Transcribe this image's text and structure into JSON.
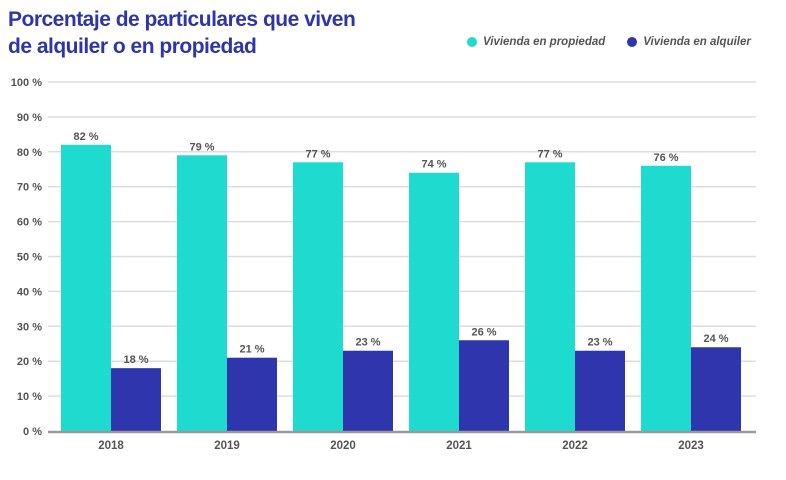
{
  "chart_data": {
    "type": "bar",
    "title": "Porcentaje de particulares que viven de alquiler o en propiedad",
    "title_lines": [
      "Porcentaje de particulares que viven",
      "de alquiler o en propiedad"
    ],
    "categories": [
      "2018",
      "2019",
      "2020",
      "2021",
      "2022",
      "2023"
    ],
    "series": [
      {
        "name": "Vivienda en propiedad",
        "color": "#1fdbcf",
        "values": [
          82,
          79,
          77,
          74,
          77,
          76
        ],
        "labels": [
          "82 %",
          "79 %",
          "77 %",
          "74 %",
          "77 %",
          "76 %"
        ]
      },
      {
        "name": "Vivienda en alquiler",
        "color": "#2e35ad",
        "values": [
          18,
          21,
          23,
          26,
          23,
          24
        ],
        "labels": [
          "18 %",
          "21 %",
          "23 %",
          "26 %",
          "23 %",
          "24 %"
        ]
      }
    ],
    "yticks": [
      "0 %",
      "10 %",
      "20 %",
      "30 %",
      "40 %",
      "50 %",
      "60 %",
      "70 %",
      "80 %",
      "90 %",
      "100 %"
    ],
    "ylim": [
      0,
      100
    ],
    "grid": true,
    "legend_position": "top-right",
    "title_color": "#2e35a8"
  }
}
